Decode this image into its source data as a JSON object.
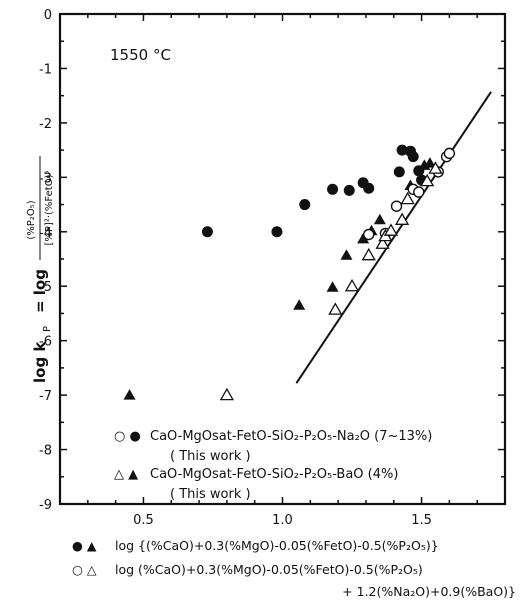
{
  "chart_data": {
    "type": "scatter",
    "annotation": "1550 °C",
    "xlim": [
      0.2,
      1.8
    ],
    "ylim": [
      -9,
      0
    ],
    "x_ticks": [
      "0.5",
      "1.0",
      "1.5"
    ],
    "y_ticks": [
      "0",
      "-1",
      "-2",
      "-3",
      "-4",
      "-5",
      "-6",
      "-7",
      "-8",
      "-9"
    ],
    "ylabel": {
      "prefix": "log k",
      "sub": "P",
      "eq": "= log",
      "numerator": "(%P₂O₅)",
      "denominator": "[%P]²·(%FetO)⁵"
    },
    "xlabel": {
      "line1_markers": "● ▲",
      "line1": "log {(%CaO)+0.3(%MgO)-0.05(%FetO)-0.5(%P₂O₅)}",
      "line2_markers": "○ △",
      "line2": "log  (%CaO)+0.3(%MgO)-0.05(%FetO)-0.5(%P₂O₅)",
      "line3": "+ 1.2(%Na₂O)+0.9(%BaO)}"
    },
    "legend": [
      {
        "markers": "○ ●",
        "label": "CaO-MgOsat-FetO-SiO₂-P₂O₅-Na₂O (7~13%)",
        "sub": "( This  work )"
      },
      {
        "markers": "△ ▲",
        "label": "CaO-MgOsat-FetO-SiO₂-P₂O₅-BaO (4%)",
        "sub": "( This  work )"
      }
    ],
    "series": [
      {
        "marker": "filled-circle",
        "points": [
          [
            0.73,
            -4.0
          ],
          [
            0.98,
            -4.0
          ],
          [
            1.08,
            -3.5
          ],
          [
            1.18,
            -3.22
          ],
          [
            1.24,
            -3.24
          ],
          [
            1.29,
            -3.1
          ],
          [
            1.31,
            -3.2
          ],
          [
            1.42,
            -2.9
          ],
          [
            1.43,
            -2.5
          ],
          [
            1.46,
            -2.52
          ],
          [
            1.47,
            -2.62
          ],
          [
            1.49,
            -2.88
          ],
          [
            1.5,
            -3.05
          ]
        ]
      },
      {
        "marker": "filled-triangle",
        "points": [
          [
            0.45,
            -7.0
          ],
          [
            1.06,
            -5.35
          ],
          [
            1.18,
            -5.02
          ],
          [
            1.23,
            -4.43
          ],
          [
            1.29,
            -4.13
          ],
          [
            1.32,
            -3.98
          ],
          [
            1.35,
            -3.78
          ],
          [
            1.46,
            -3.15
          ],
          [
            1.51,
            -2.78
          ],
          [
            1.53,
            -2.74
          ]
        ]
      },
      {
        "marker": "open-circle",
        "points": [
          [
            1.31,
            -4.05
          ],
          [
            1.37,
            -4.03
          ],
          [
            1.41,
            -3.53
          ],
          [
            1.47,
            -3.22
          ],
          [
            1.49,
            -3.27
          ],
          [
            1.56,
            -2.9
          ],
          [
            1.59,
            -2.62
          ],
          [
            1.6,
            -2.56
          ]
        ]
      },
      {
        "marker": "open-triangle",
        "points": [
          [
            0.8,
            -7.0
          ],
          [
            1.19,
            -5.43
          ],
          [
            1.25,
            -5.0
          ],
          [
            1.31,
            -4.43
          ],
          [
            1.36,
            -4.22
          ],
          [
            1.37,
            -4.08
          ],
          [
            1.39,
            -3.98
          ],
          [
            1.43,
            -3.78
          ],
          [
            1.45,
            -3.4
          ],
          [
            1.52,
            -3.07
          ],
          [
            1.55,
            -2.84
          ]
        ]
      }
    ],
    "fit_line": {
      "x": [
        1.05,
        1.75
      ],
      "y": [
        -6.78,
        -1.43
      ]
    }
  }
}
